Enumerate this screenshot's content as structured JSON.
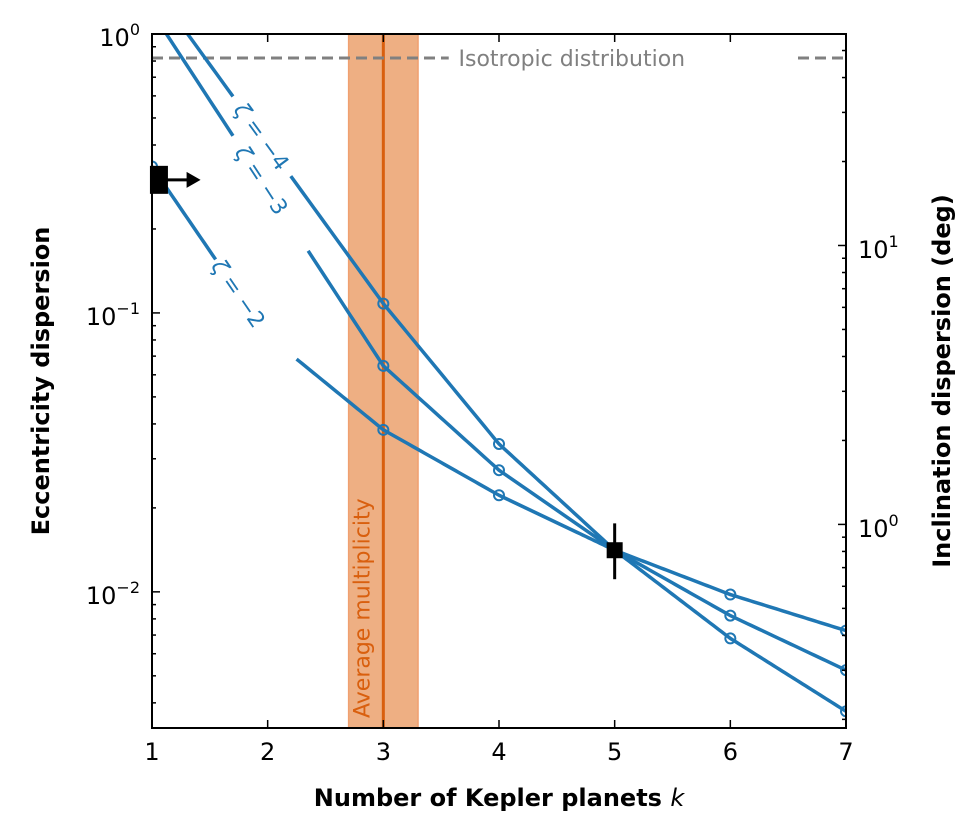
{
  "chart_data": {
    "type": "line",
    "xlabel": "Number of Kepler planets",
    "xlabel_var": "k",
    "ylabel": "Eccentricity dispersion",
    "ylabel_right": "Inclination dispersion (deg)",
    "xlim": [
      1,
      7
    ],
    "ylim": [
      0.00325,
      1.0
    ],
    "yscale": "log",
    "x_ticks": [
      "1",
      "2",
      "3",
      "4",
      "5",
      "6",
      "7"
    ],
    "y_ticks": [
      {
        "value": 1.0,
        "base": "10",
        "exp": "0"
      },
      {
        "value": 0.1,
        "base": "10",
        "exp": "−1"
      },
      {
        "value": 0.01,
        "base": "10",
        "exp": "−2"
      }
    ],
    "y_right_ticks": [
      {
        "value": 0.0174,
        "base": "10",
        "exp": "0"
      },
      {
        "value": 0.174,
        "base": "10",
        "exp": "1"
      }
    ],
    "series": [
      {
        "name": "ζ = −4",
        "label_prefix": "ζ = ",
        "label_value": "−4",
        "color": "#1f77b4",
        "x": [
          1.0,
          3,
          4,
          5,
          6,
          7
        ],
        "y": [
          1.5,
          0.108,
          0.0339,
          0.0141,
          0.00681,
          0.00373
        ],
        "markers": [
          3,
          4,
          5,
          6,
          7
        ],
        "label_x": 1.95,
        "gap": [
          1.7,
          2.2
        ]
      },
      {
        "name": "ζ = −3",
        "label_prefix": "ζ = ",
        "label_value": "−3",
        "color": "#1f77b4",
        "x": [
          1.0,
          3,
          4,
          5,
          6,
          7
        ],
        "y": [
          1.2,
          0.0646,
          0.0273,
          0.0141,
          0.00822,
          0.00524
        ],
        "markers": [
          3,
          4,
          5,
          6,
          7
        ],
        "label_x": 1.95,
        "gap": [
          1.72,
          2.32
        ]
      },
      {
        "name": "ζ = −2",
        "label_prefix": "ζ = ",
        "label_value": "−2",
        "color": "#1f77b4",
        "x": [
          1.0,
          2,
          3,
          4,
          5,
          6,
          7
        ],
        "y": [
          0.335,
          0.083,
          0.0381,
          0.0222,
          0.0141,
          0.00978,
          0.00726
        ],
        "markers": [
          1,
          3,
          4,
          5,
          6,
          7
        ],
        "label_x": 1.75,
        "gap": [
          1.55,
          2.25
        ]
      }
    ],
    "reference_line": {
      "label": "Isotropic distribution",
      "y": 0.82,
      "color": "#808080",
      "style": "dashed"
    },
    "vertical_band": {
      "label": "Average multiplicity",
      "center": 3.0,
      "range": [
        2.7,
        3.3
      ],
      "line_color": "#d95f0e",
      "fill_color": "#eeaf83"
    },
    "observations": [
      {
        "x": 1.06,
        "y": 0.3,
        "type": "lower-limit",
        "arrow_to_x": 1.42
      },
      {
        "x": 5.0,
        "y": 0.0141,
        "y_err": [
          0.0111,
          0.0176
        ],
        "type": "point"
      }
    ]
  }
}
